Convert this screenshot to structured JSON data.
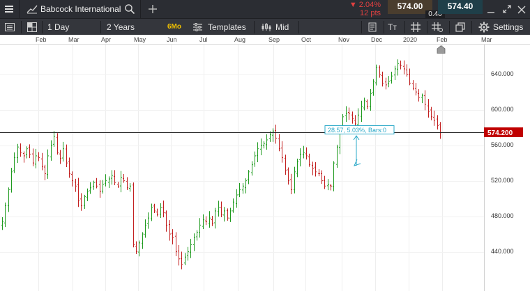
{
  "header": {
    "instrument": "Babcock International",
    "change_percent": "2.04%",
    "change_points": "12 pts",
    "sell_price": "574.00",
    "spread": "0.40",
    "buy_price": "574.40"
  },
  "toolbar": {
    "interval": "1 Day",
    "range": "2 Years",
    "quick_range": "6Mo",
    "templates": "Templates",
    "price_type": "Mid",
    "settings": "Settings"
  },
  "time_axis": {
    "labels": [
      "Feb",
      "Mar",
      "Apr",
      "May",
      "Jun",
      "Jul",
      "Aug",
      "Sep",
      "Oct",
      "Nov",
      "Dec",
      "2020",
      "Feb",
      "Mar"
    ]
  },
  "price_axis": {
    "labels": [
      "640.000",
      "600.000",
      "560.000",
      "520.000",
      "480.000",
      "440.000"
    ]
  },
  "current_price": "574.200",
  "measure_label": "28.57, 5.03%, Bars:0",
  "colors": {
    "up": "#1f9a1f",
    "down": "#c21f1f",
    "current_badge": "#c00000",
    "accent": "#f0c000",
    "measure": "#2aa8c8"
  },
  "chart_data": {
    "type": "ohlc",
    "y_axis_labels": [
      "640.000",
      "600.000",
      "560.000",
      "520.000",
      "480.000",
      "440.000"
    ],
    "x_axis_labels": [
      "Feb",
      "Mar",
      "Apr",
      "May",
      "Jun",
      "Jul",
      "Aug",
      "Sep",
      "Oct",
      "Nov",
      "Dec",
      "2020",
      "Feb",
      "Mar"
    ],
    "close_series": [
      474,
      492,
      510,
      530,
      546,
      558,
      552,
      548,
      556,
      550,
      540,
      548,
      546,
      536,
      528,
      548,
      560,
      570,
      552,
      545,
      556,
      540,
      528,
      520,
      514,
      498,
      492,
      502,
      508,
      512,
      518,
      514,
      508,
      516,
      520,
      522,
      526,
      518,
      514,
      524,
      520,
      512,
      514,
      448,
      440,
      450,
      460,
      470,
      478,
      490,
      486,
      482,
      490,
      484,
      470,
      460,
      456,
      440,
      432,
      426,
      434,
      440,
      448,
      456,
      462,
      470,
      476,
      474,
      478,
      472,
      486,
      490,
      482,
      486,
      478,
      486,
      496,
      504,
      510,
      514,
      520,
      530,
      538,
      548,
      556,
      560,
      562,
      566,
      572,
      576,
      568,
      556,
      546,
      532,
      520,
      510,
      530,
      542,
      550,
      552,
      548,
      538,
      534,
      530,
      528,
      520,
      514,
      516,
      514,
      540,
      558,
      574,
      592,
      596,
      596,
      590,
      584,
      594,
      604,
      610,
      604,
      618,
      632,
      648,
      640,
      630,
      628,
      632,
      638,
      646,
      652,
      650,
      646,
      640,
      630,
      624,
      620,
      614,
      616,
      606,
      598,
      592,
      588,
      582,
      574
    ],
    "current_price": 574.2
  }
}
